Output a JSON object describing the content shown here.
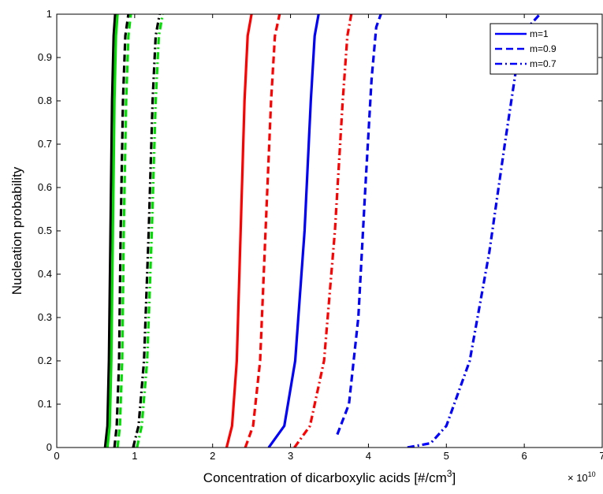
{
  "chart_data": {
    "type": "line",
    "xlabel_main": "Concentration  of dicarboxylic acids [#/cm",
    "xlabel_sup": "3",
    "xlabel_tail": "]",
    "ylabel": "Nucleation probability",
    "exponent_label": "× 10",
    "exponent_sup": "10",
    "xlim": [
      0,
      7
    ],
    "ylim": [
      0,
      1
    ],
    "xticks": [
      "0",
      "1",
      "2",
      "3",
      "4",
      "5",
      "6",
      "7"
    ],
    "yticks": [
      "0",
      "0.1",
      "0.2",
      "0.3",
      "0.4",
      "0.5",
      "0.6",
      "0.7",
      "0.8",
      "0.9",
      "1"
    ],
    "grid": false,
    "legend": {
      "placement": "top-right",
      "entries": [
        {
          "label": "m=1",
          "style": "solid"
        },
        {
          "label": "m=0.9",
          "style": "dashed"
        },
        {
          "label": "m=0.7",
          "style": "dashdot"
        }
      ]
    },
    "series": [
      {
        "color": "#000000",
        "style": "solid",
        "x": [
          0.62,
          0.65,
          0.67,
          0.69,
          0.71,
          0.73,
          0.75
        ],
        "y": [
          0,
          0.05,
          0.2,
          0.5,
          0.8,
          0.95,
          1
        ]
      },
      {
        "color": "#00dd00",
        "style": "solid",
        "x": [
          0.65,
          0.68,
          0.7,
          0.72,
          0.74,
          0.76,
          0.78
        ],
        "y": [
          0,
          0.05,
          0.2,
          0.5,
          0.8,
          0.95,
          1
        ]
      },
      {
        "color": "#000000",
        "style": "dashed",
        "x": [
          0.74,
          0.77,
          0.8,
          0.82,
          0.85,
          0.88,
          0.92
        ],
        "y": [
          0,
          0.05,
          0.2,
          0.5,
          0.8,
          0.95,
          1
        ]
      },
      {
        "color": "#00dd00",
        "style": "dashed",
        "x": [
          0.78,
          0.81,
          0.84,
          0.86,
          0.89,
          0.92,
          0.95
        ],
        "y": [
          0,
          0.05,
          0.2,
          0.5,
          0.8,
          0.95,
          1
        ]
      },
      {
        "color": "#000000",
        "style": "dashdot",
        "x": [
          0.98,
          1.05,
          1.12,
          1.18,
          1.23,
          1.27,
          1.32
        ],
        "y": [
          0,
          0.05,
          0.2,
          0.5,
          0.8,
          0.95,
          1
        ]
      },
      {
        "color": "#00dd00",
        "style": "dashdot",
        "x": [
          1.03,
          1.09,
          1.16,
          1.22,
          1.27,
          1.31,
          1.36
        ],
        "y": [
          0,
          0.05,
          0.2,
          0.5,
          0.8,
          0.95,
          1
        ]
      },
      {
        "color": "#ff0000",
        "style": "solid",
        "x": [
          2.18,
          2.25,
          2.31,
          2.36,
          2.41,
          2.45,
          2.5
        ],
        "y": [
          0,
          0.05,
          0.2,
          0.5,
          0.8,
          0.95,
          1
        ]
      },
      {
        "color": "#ff0000",
        "style": "dashed",
        "x": [
          2.42,
          2.52,
          2.61,
          2.68,
          2.75,
          2.8,
          2.86
        ],
        "y": [
          0,
          0.05,
          0.2,
          0.5,
          0.8,
          0.95,
          1
        ]
      },
      {
        "color": "#0000ff",
        "style": "solid",
        "x": [
          2.72,
          2.92,
          3.06,
          3.18,
          3.26,
          3.31,
          3.36
        ],
        "y": [
          0,
          0.05,
          0.2,
          0.5,
          0.8,
          0.95,
          1
        ]
      },
      {
        "color": "#ff0000",
        "style": "dashdot",
        "x": [
          3.05,
          3.25,
          3.43,
          3.57,
          3.67,
          3.73,
          3.78
        ],
        "y": [
          0,
          0.05,
          0.2,
          0.5,
          0.8,
          0.95,
          1
        ]
      },
      {
        "color": "#0000ff",
        "style": "dashed",
        "x": [
          3.6,
          3.75,
          3.87,
          3.96,
          4.04,
          4.1,
          4.16
        ],
        "y": [
          0.03,
          0.1,
          0.3,
          0.6,
          0.85,
          0.97,
          1
        ]
      },
      {
        "color": "#0000ff",
        "style": "dashdot",
        "x": [
          4.5,
          4.8,
          5.0,
          5.3,
          5.55,
          5.75,
          5.9,
          6.05,
          6.2
        ],
        "y": [
          0,
          0.01,
          0.05,
          0.2,
          0.45,
          0.7,
          0.88,
          0.97,
          1
        ]
      }
    ]
  }
}
